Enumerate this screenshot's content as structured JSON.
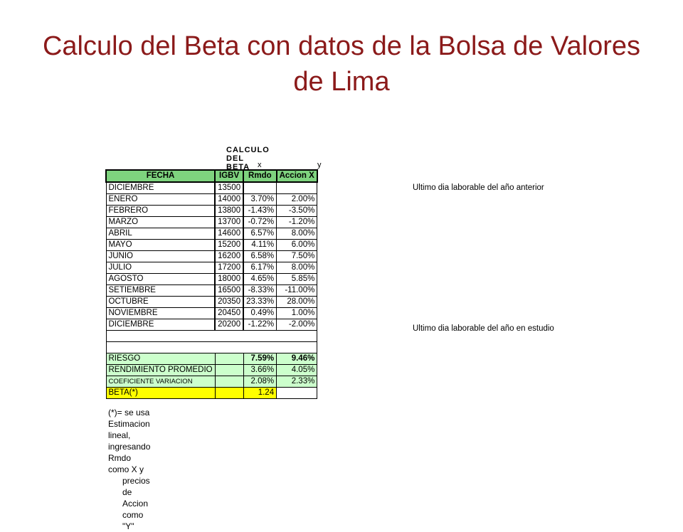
{
  "title": "Calculo del  Beta con datos de la Bolsa de Valores de Lima",
  "sheet": {
    "caption": "CALCULO DEL BETA",
    "x_label": "x",
    "y_label": "y",
    "headers": [
      "FECHA",
      "IGBV",
      "Rmdo",
      "Accion X"
    ],
    "rows": [
      {
        "fecha": "DICIEMBRE",
        "igbv": "13500",
        "rmdo": "",
        "accion": "",
        "note": "Ultimo dia laborable del año anterior"
      },
      {
        "fecha": "ENERO",
        "igbv": "14000",
        "rmdo": "3.70%",
        "accion": "2.00%",
        "note": ""
      },
      {
        "fecha": "FEBRERO",
        "igbv": "13800",
        "rmdo": "-1.43%",
        "accion": "-3.50%",
        "note": ""
      },
      {
        "fecha": "MARZO",
        "igbv": "13700",
        "rmdo": "-0.72%",
        "accion": "-1.20%",
        "note": ""
      },
      {
        "fecha": "ABRIL",
        "igbv": "14600",
        "rmdo": "6.57%",
        "accion": "8.00%",
        "note": ""
      },
      {
        "fecha": "MAYO",
        "igbv": "15200",
        "rmdo": "4.11%",
        "accion": "6.00%",
        "note": ""
      },
      {
        "fecha": "JUNIO",
        "igbv": "16200",
        "rmdo": "6.58%",
        "accion": "7.50%",
        "note": ""
      },
      {
        "fecha": "JULIO",
        "igbv": "17200",
        "rmdo": "6.17%",
        "accion": "8.00%",
        "note": ""
      },
      {
        "fecha": "AGOSTO",
        "igbv": "18000",
        "rmdo": "4.65%",
        "accion": "5.85%",
        "note": ""
      },
      {
        "fecha": "SETIEMBRE",
        "igbv": "16500",
        "rmdo": "-8.33%",
        "accion": "-11.00%",
        "note": ""
      },
      {
        "fecha": "OCTUBRE",
        "igbv": "20350",
        "rmdo": "23.33%",
        "accion": "28.00%",
        "note": ""
      },
      {
        "fecha": "NOVIEMBRE",
        "igbv": "20450",
        "rmdo": "0.49%",
        "accion": "1.00%",
        "note": ""
      },
      {
        "fecha": "DICIEMBRE",
        "igbv": "20200",
        "rmdo": "-1.22%",
        "accion": "-2.00%",
        "note": "Ultimo dia laborable del año en estudio"
      }
    ],
    "summary": [
      {
        "label": "RIESGO",
        "rmdo": "7.59%",
        "accion": "9.46%"
      },
      {
        "label": "RENDIMIENTO PROMEDIO",
        "rmdo": "3.66%",
        "accion": "4.05%"
      },
      {
        "label": "COEFICIENTE VARIACION",
        "rmdo": "2.08%",
        "accion": "2.33%"
      },
      {
        "label": "BETA(*)",
        "rmdo": "1.24",
        "accion": ""
      }
    ],
    "footnote_line1": "(*)= se usa Estimacion lineal, ingresando Rmdo como X y",
    "footnote_line2": "precios de Accion como \"Y\""
  }
}
